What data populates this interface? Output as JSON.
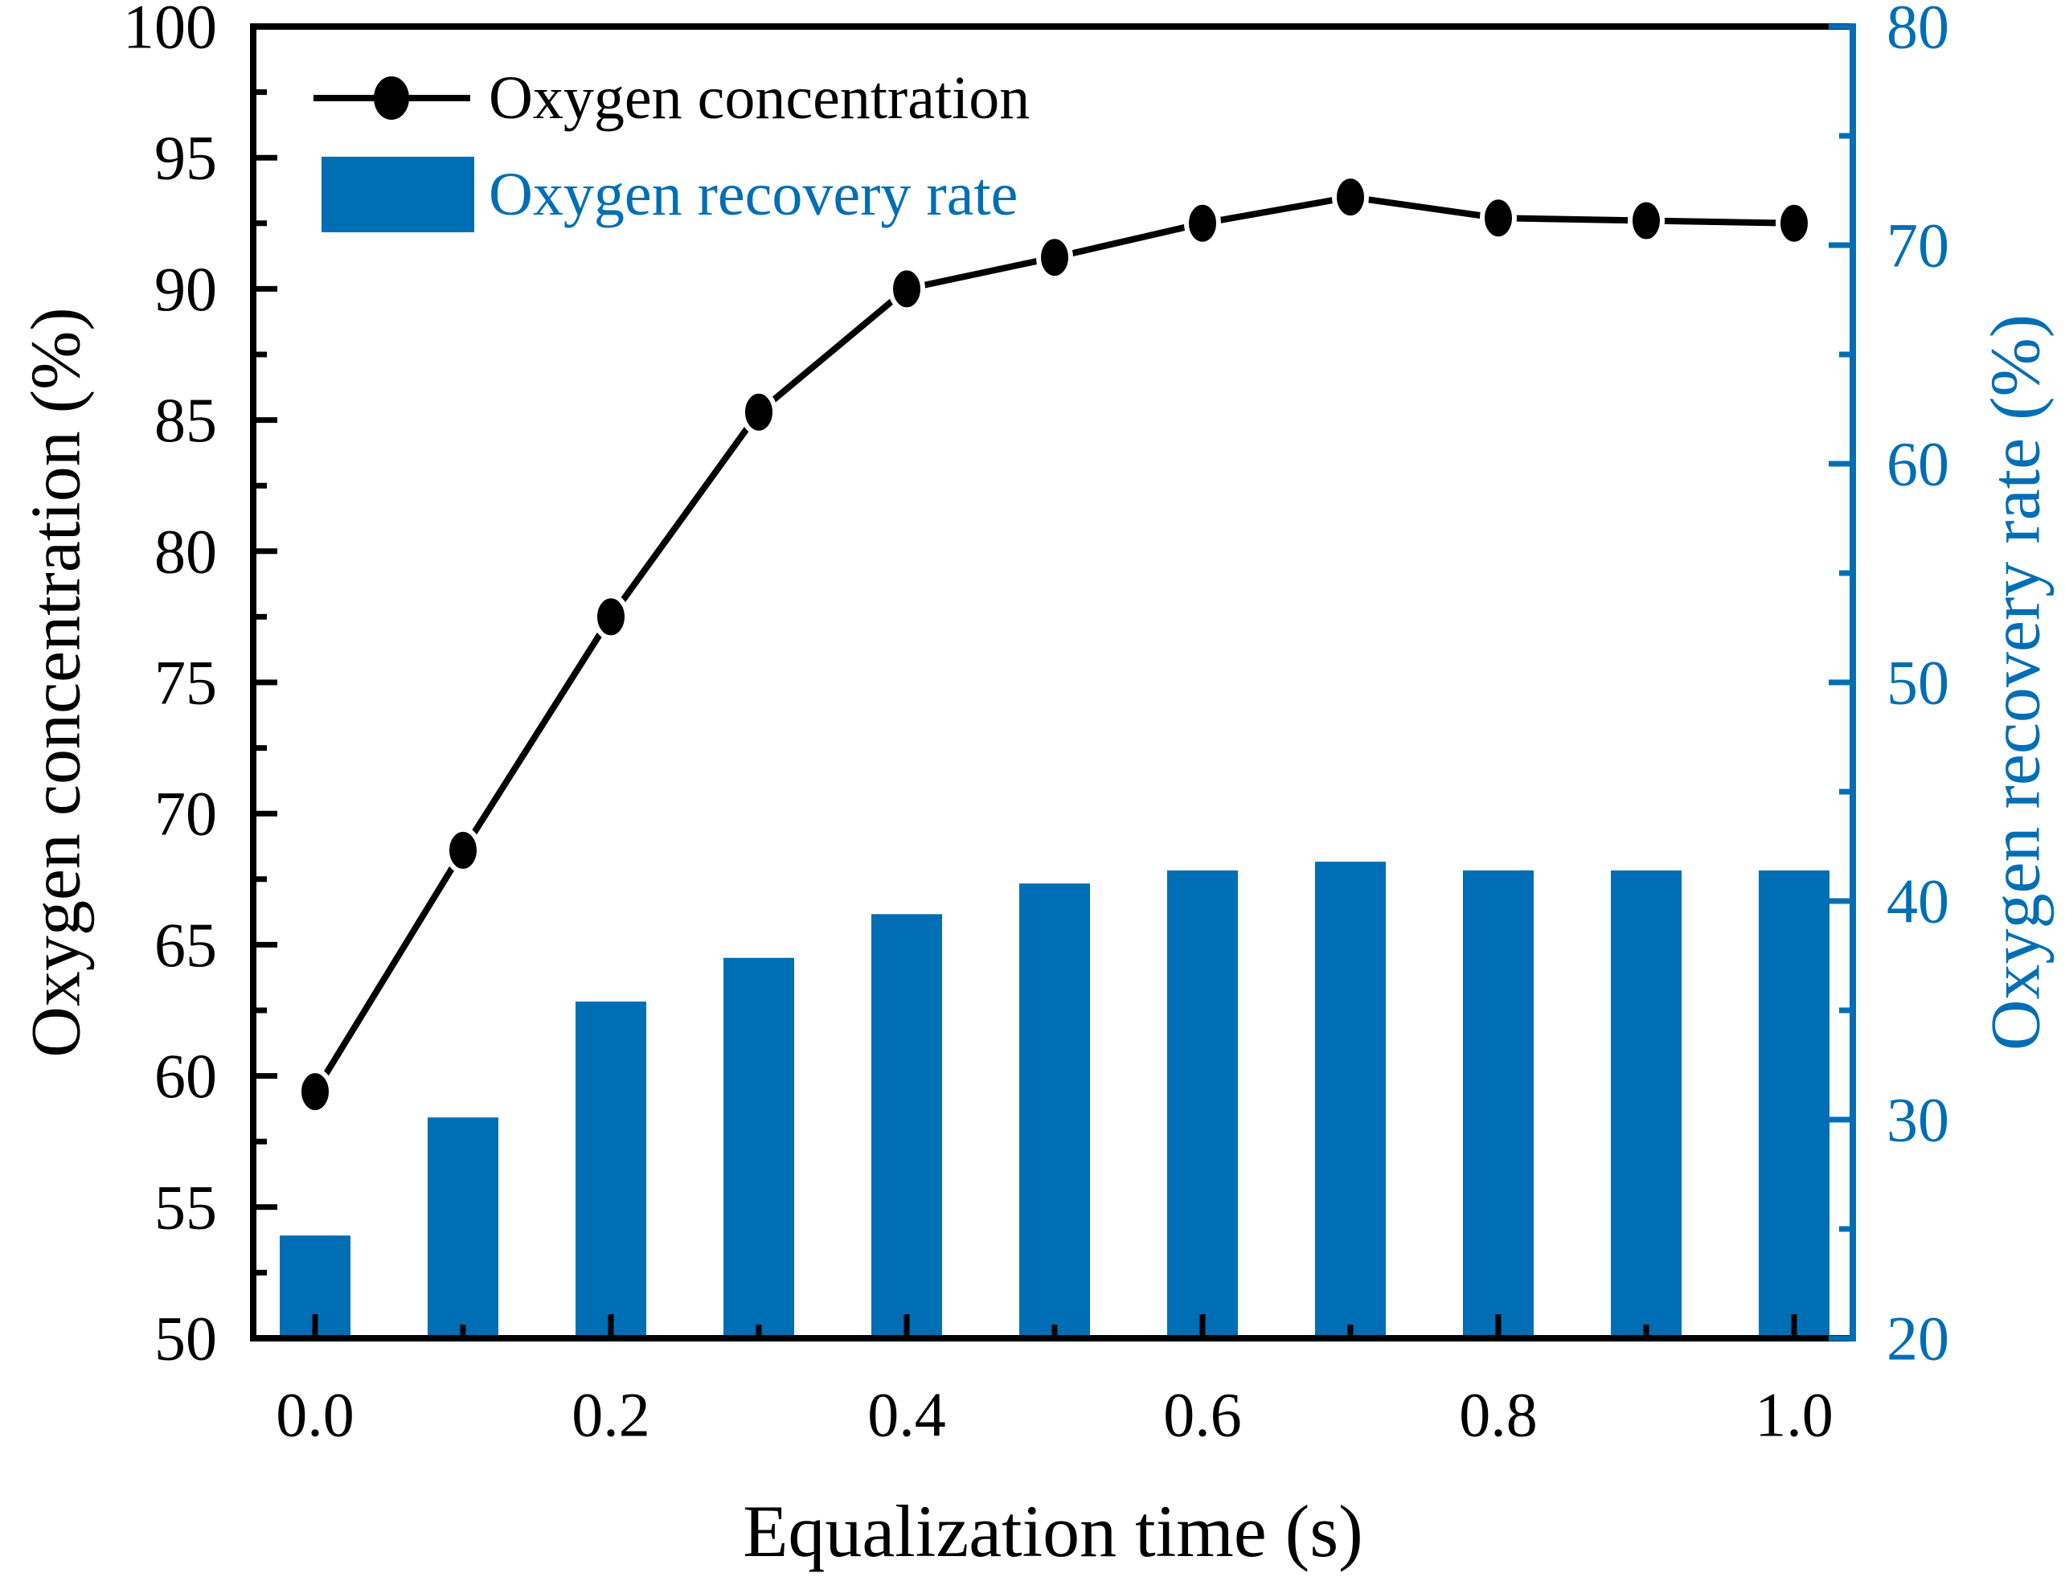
{
  "chart_data": {
    "type": "combo",
    "title": "",
    "xlabel": "Equalization time (s)",
    "ylabel_left": "Oxygen concentration (%)",
    "ylabel_right": "Oxygen recovery rate (%)",
    "x": [
      0.0,
      0.1,
      0.2,
      0.3,
      0.4,
      0.5,
      0.6,
      0.7,
      0.8,
      0.9,
      1.0
    ],
    "series": [
      {
        "name": "Oxygen concentration",
        "type": "line",
        "axis": "left",
        "color": "#000000",
        "marker": "circle",
        "values": [
          59.4,
          68.6,
          77.5,
          85.3,
          90.0,
          91.2,
          92.5,
          93.5,
          92.7,
          92.6,
          92.5
        ]
      },
      {
        "name": "Oxygen recovery rate",
        "type": "bar",
        "axis": "right",
        "color": "#006EB4",
        "values": [
          24.7,
          30.1,
          35.4,
          37.4,
          39.4,
          40.8,
          41.4,
          41.8,
          41.4,
          41.4,
          41.4
        ]
      }
    ],
    "left_axis": {
      "min": 50,
      "max": 100,
      "major_step": 5,
      "minor_step": 2.5,
      "tick_labels": [
        "50",
        "55",
        "60",
        "65",
        "70",
        "75",
        "80",
        "85",
        "90",
        "95",
        "100"
      ],
      "color": "#000000"
    },
    "right_axis": {
      "min": 20,
      "max": 80,
      "major_step": 10,
      "minor_step": 5,
      "tick_labels": [
        "20",
        "30",
        "40",
        "50",
        "60",
        "70",
        "80"
      ],
      "color": "#006EB4"
    },
    "x_axis": {
      "min": 0,
      "max": 1,
      "major_step": 0.2,
      "minor_step": 0.1,
      "tick_labels": [
        "0.0",
        "0.2",
        "0.4",
        "0.6",
        "0.8",
        "1.0"
      ],
      "color": "#000000"
    },
    "grid": false,
    "legend_position": "upper left"
  },
  "colors": {
    "accent": "#006EB4",
    "ink": "#000000",
    "background": "#FFFFFF",
    "marker_halo": "#FFFFFF"
  }
}
